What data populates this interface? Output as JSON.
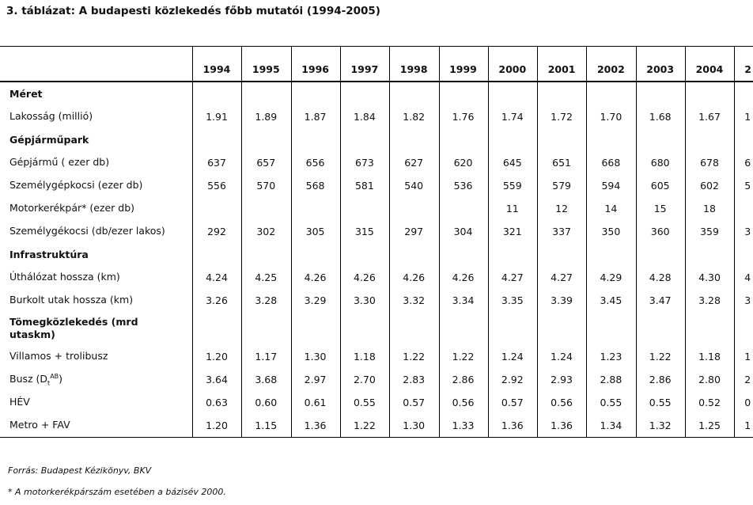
{
  "title": "3. táblázat: A budapesti közlekedés főbb mutatói (1994-2005)",
  "table": {
    "years": [
      "1994",
      "1995",
      "1996",
      "1997",
      "1998",
      "1999",
      "2000",
      "2001",
      "2002",
      "2003",
      "2004",
      "2"
    ],
    "rows": [
      {
        "section": "Méret"
      },
      {
        "label": [
          "Lakosság (millió)"
        ],
        "values": [
          "1.91",
          "1.89",
          "1.87",
          "1.84",
          "1.82",
          "1.76",
          "1.74",
          "1.72",
          "1.70",
          "1.68",
          "1.67",
          "1"
        ]
      },
      {
        "section": "Gépjárműpark"
      },
      {
        "label": [
          "Gépjármű ( ezer db)"
        ],
        "values": [
          "637",
          "657",
          "656",
          "673",
          "627",
          "620",
          "645",
          "651",
          "668",
          "680",
          "678",
          "6"
        ]
      },
      {
        "label": [
          "Személygépkocsi (ezer db)"
        ],
        "values": [
          "556",
          "570",
          "568",
          "581",
          "540",
          "536",
          "559",
          "579",
          "594",
          "605",
          "602",
          "5"
        ]
      },
      {
        "label": [
          "Motorkerékpár* (ezer db)"
        ],
        "values": [
          null,
          null,
          null,
          null,
          null,
          null,
          "11",
          "12",
          "14",
          "15",
          "18",
          null
        ]
      },
      {
        "label": [
          "Személygékocsi  (db/ezer lakos)"
        ],
        "values": [
          "292",
          "302",
          "305",
          "315",
          "297",
          "304",
          "321",
          "337",
          "350",
          "360",
          "359",
          "3"
        ]
      },
      {
        "section": "Infrastruktúra"
      },
      {
        "label": [
          "Úthálózat hossza (km)"
        ],
        "values": [
          "4.24",
          "4.25",
          "4.26",
          "4.26",
          "4.26",
          "4.26",
          "4.27",
          "4.27",
          "4.29",
          "4.28",
          "4.30",
          "4"
        ]
      },
      {
        "label": [
          "Burkolt utak hossza (km)"
        ],
        "values": [
          "3.26",
          "3.28",
          "3.29",
          "3.30",
          "3.32",
          "3.34",
          "3.35",
          "3.39",
          "3.45",
          "3.47",
          "3.28",
          "3"
        ]
      },
      {
        "section": "Tömegközlekedés (mrd utaskm)"
      },
      {
        "label": [
          "Villamos + trolibusz"
        ],
        "values": [
          "1.20",
          "1.17",
          "1.30",
          "1.18",
          "1.22",
          "1.22",
          "1.24",
          "1.24",
          "1.23",
          "1.22",
          "1.18",
          "1"
        ]
      },
      {
        "label": [
          "Busz (D",
          "t",
          "AB",
          ")"
        ],
        "values": [
          "3.64",
          "3.68",
          "2.97",
          "2.70",
          "2.83",
          "2.86",
          "2.92",
          "2.93",
          "2.88",
          "2.86",
          "2.80",
          "2"
        ]
      },
      {
        "label": [
          "HÉV"
        ],
        "values": [
          "0.63",
          "0.60",
          "0.61",
          "0.55",
          "0.57",
          "0.56",
          "0.57",
          "0.56",
          "0.55",
          "0.55",
          "0.52",
          "0"
        ]
      },
      {
        "label": [
          "Metro + FAV"
        ],
        "values": [
          "1.20",
          "1.15",
          "1.36",
          "1.22",
          "1.30",
          "1.33",
          "1.36",
          "1.36",
          "1.34",
          "1.32",
          "1.25",
          "1"
        ]
      }
    ]
  },
  "notes": [
    "Forrás: Budapest Kézikönyv, BKV",
    "* A motorkerékpárszám esetében a bázisév 2000."
  ]
}
